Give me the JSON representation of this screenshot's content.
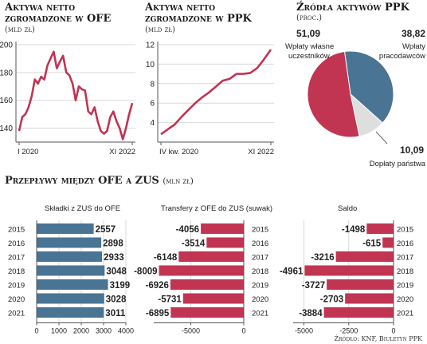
{
  "colors": {
    "red": "#c13452",
    "blue": "#4a7494",
    "grey": "#dedede",
    "axis": "#555555",
    "grid": "#d9d9d9"
  },
  "ofe": {
    "title_line1": "Aktywa netto",
    "title_line2": "zgromadzone w OFE",
    "unit": "(mld zł)",
    "chart_data": {
      "type": "line",
      "xlabel_start": "I 2020",
      "xlabel_end": "XI 2022",
      "ylim": [
        130,
        200
      ],
      "yticks": [
        140,
        160,
        180,
        200
      ],
      "values": [
        138,
        148,
        150,
        155,
        163,
        175,
        172,
        177,
        175,
        185,
        190,
        195,
        183,
        188,
        192,
        180,
        178,
        172,
        160,
        170,
        168,
        167,
        152,
        150,
        155,
        145,
        138,
        136,
        138,
        148,
        152,
        145,
        140,
        132,
        140,
        150,
        158
      ]
    }
  },
  "ppk": {
    "title_line1": "Aktywa netto",
    "title_line2": "zgromadzone w PPK",
    "unit": "(mld zł)",
    "chart_data": {
      "type": "line",
      "xlabel_start": "IV kw. 2020",
      "xlabel_end": "XI 2022",
      "ylim": [
        2,
        12
      ],
      "yticks": [
        4,
        6,
        8,
        10,
        12
      ],
      "values": [
        2.8,
        3.3,
        3.8,
        4.6,
        5.3,
        6.0,
        6.6,
        7.1,
        7.7,
        8.3,
        8.5,
        9.0,
        9.0,
        9.1,
        9.6,
        10.5,
        11.5
      ]
    }
  },
  "sources": {
    "title": "Źródła aktywów PPK",
    "unit": "(proc.)",
    "chart_data": {
      "type": "pie",
      "slices": [
        {
          "value": 51.09,
          "value_label": "51,09",
          "label": [
            "Wpłaty własne",
            "uczestników"
          ]
        },
        {
          "value": 38.82,
          "value_label": "38,82",
          "label": [
            "Wpłaty",
            "pracodawców"
          ]
        },
        {
          "value": 10.09,
          "value_label": "10,09",
          "label": [
            "Dopłaty państwa"
          ]
        }
      ]
    }
  },
  "flows": {
    "title": "Przepływy między OFE a ZUS",
    "unit": "(mln zł)",
    "years": [
      "2015",
      "2016",
      "2017",
      "2018",
      "2019",
      "2020",
      "2021"
    ],
    "chart_data": [
      {
        "type": "bar",
        "title": "Składki z ZUS do OFE",
        "values": [
          2557,
          2898,
          2933,
          3048,
          3199,
          3028,
          3011
        ],
        "labels": [
          "2557",
          "2898",
          "2933",
          "3048",
          "3199",
          "3028",
          "3011"
        ],
        "xlim": [
          0,
          4000
        ],
        "xticks": [
          "0",
          "1000",
          "2000",
          "3000",
          "4000"
        ]
      },
      {
        "type": "bar",
        "title": "Transfery z OFE do ZUS (suwak)",
        "values": [
          -4056,
          -3514,
          -6148,
          -8009,
          -6926,
          -5731,
          -6895
        ],
        "labels": [
          "-4056",
          "-3514",
          "-6148",
          "-8009",
          "-6926",
          "-5731",
          "-6895"
        ],
        "xlim": [
          -8500,
          0
        ],
        "xticks": [
          "-5000",
          "0"
        ]
      },
      {
        "type": "bar",
        "title": "Saldo",
        "values": [
          -1498,
          -615,
          -3216,
          -4961,
          -3727,
          -2703,
          -3884
        ],
        "labels": [
          "-1498",
          "-615",
          "-3216",
          "-4961",
          "-3727",
          "-2703",
          "-3884"
        ],
        "xlim": [
          -5600,
          0
        ],
        "xticks": [
          "-5000",
          "-2500",
          "0"
        ]
      }
    ]
  },
  "source_note": "Źródło: KNF, Biuletyn PPK"
}
